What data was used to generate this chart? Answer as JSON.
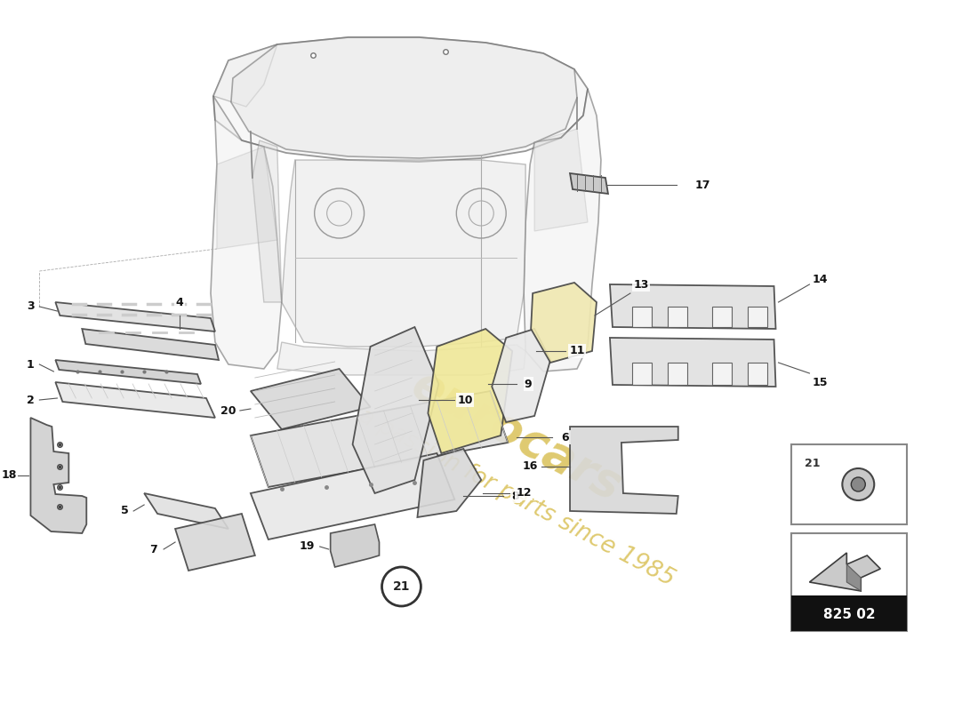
{
  "bg": "#ffffff",
  "lc": "#333333",
  "wm_color": "#d4b840",
  "part_number_text": "825 02",
  "fig_width": 11.0,
  "fig_height": 8.0,
  "dpi": 100
}
